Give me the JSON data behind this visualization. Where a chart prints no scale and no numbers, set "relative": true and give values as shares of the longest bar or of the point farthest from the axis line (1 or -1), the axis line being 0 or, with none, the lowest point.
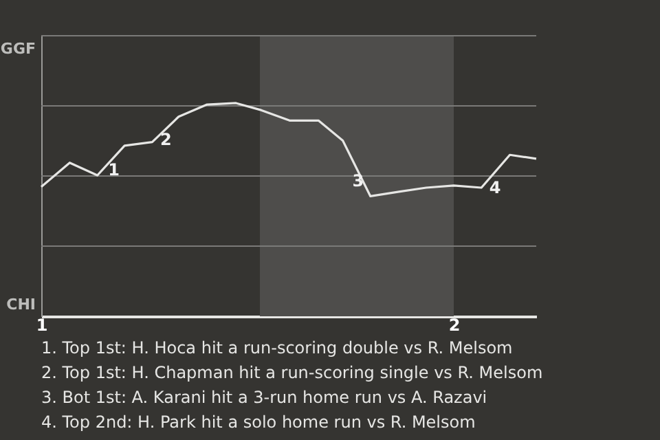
{
  "chart_data": {
    "type": "line",
    "relative": true,
    "x": [
      1.0,
      1.069,
      1.136,
      1.202,
      1.269,
      1.333,
      1.402,
      1.472,
      1.533,
      1.602,
      1.672,
      1.731,
      1.798,
      1.867,
      1.933,
      2.0,
      2.067,
      2.136,
      2.2
    ],
    "series": [
      {
        "color": "#e6e6e4",
        "values": [
          0.607,
          0.72,
          0.661,
          0.8,
          0.817,
          0.936,
          0.993,
          1,
          0.967,
          0.918,
          0.918,
          0.824,
          0.563,
          0.584,
          0.603,
          0.613,
          0.603,
          0.757,
          0.739
        ]
      }
    ],
    "xlim": [
      1,
      2.2
    ],
    "xticks": [
      1,
      2
    ],
    "marker": "none",
    "line_style": "solid",
    "ref_lines": [
      {
        "axis": "y",
        "value": 0.329,
        "color": "#7a7a78"
      },
      {
        "axis": "y",
        "value": 0.658,
        "color": "#7a7a78"
      },
      {
        "axis": "y",
        "value": 0.987,
        "color": "#7a7a78"
      },
      {
        "axis": "y",
        "value": 1.316,
        "color": "#7a7a78"
      }
    ],
    "bands": [
      {
        "axis": "x",
        "from": 1.53,
        "to": 2.0,
        "color": "#4e4d4b"
      }
    ],
    "annotations": [
      {
        "text": "1",
        "x": 1.136,
        "y": 0.661
      },
      {
        "text": "2",
        "x": 1.269,
        "y": 0.817
      },
      {
        "text": "3",
        "x": 1.798,
        "y": 0.563
      },
      {
        "text": "4",
        "x": 2.067,
        "y": 0.603
      },
      "GGF",
      "CHI",
      "1. Top 1st: H. Hoca hit a run-scoring double vs R. Melsom",
      "2. Top 1st: H. Chapman hit a run-scoring single vs R. Melsom",
      "3. Bot 1st: A. Karani hit a 3-run home run vs A. Razavi",
      "4. Top 2nd: H. Park hit a solo home run vs R. Melsom"
    ]
  }
}
